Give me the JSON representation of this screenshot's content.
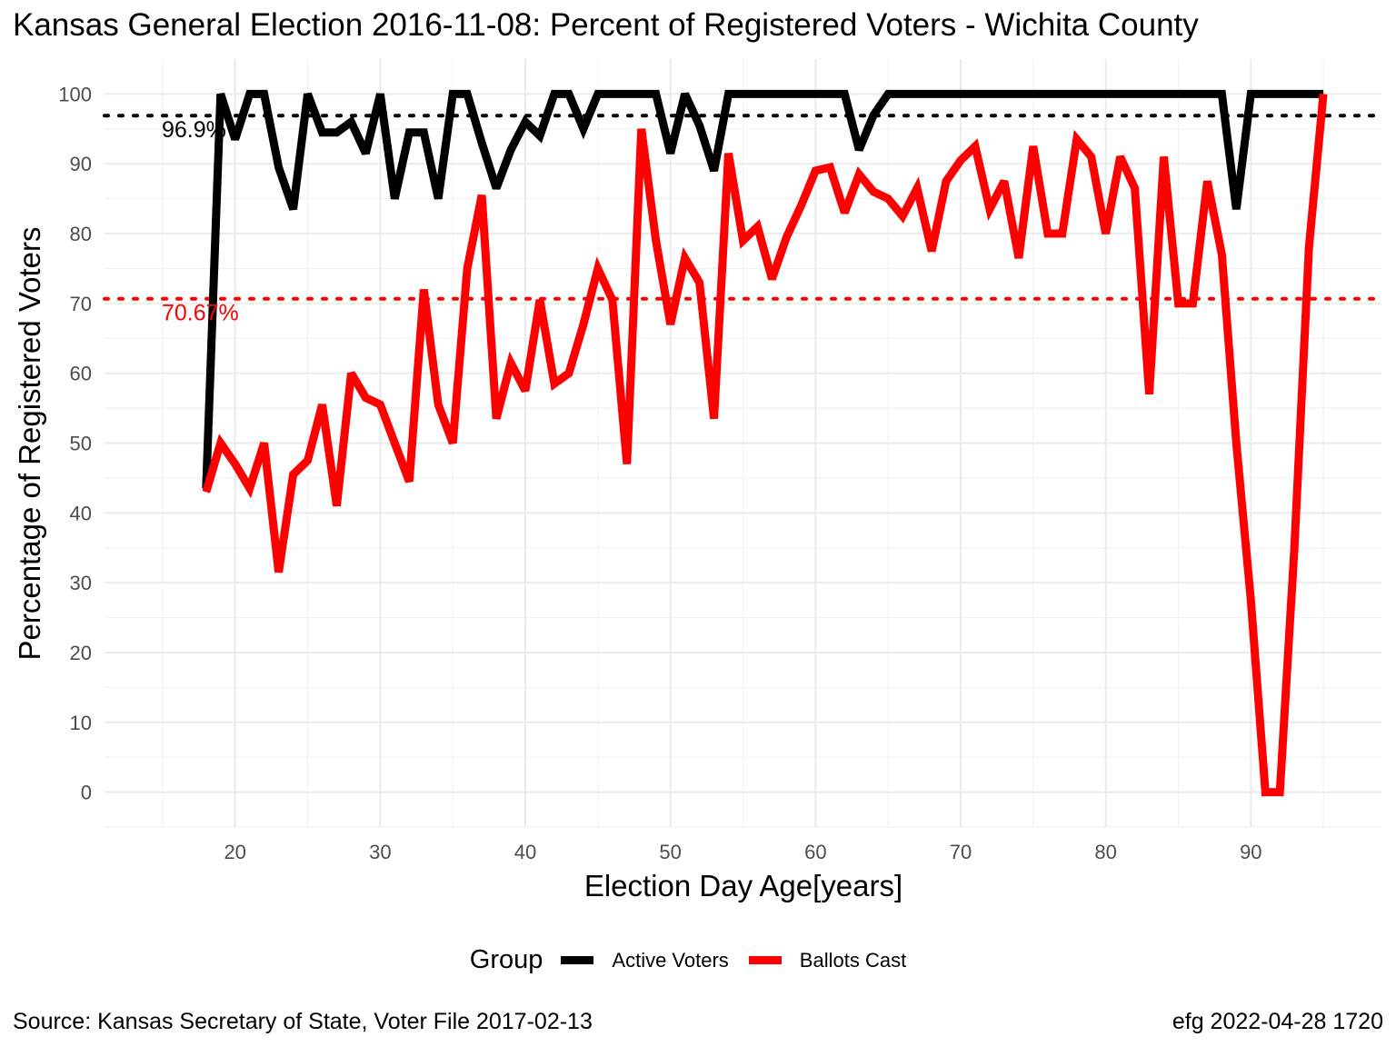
{
  "title": "Kansas General Election 2016-11-08:  Percent of Registered Voters - Wichita County",
  "caption": {
    "source": "Source:  Kansas Secretary of State, Voter File  2017-02-13",
    "credit": "efg 2022-04-28 1720"
  },
  "legend": {
    "title": "Group",
    "items": [
      {
        "label": "Active Voters",
        "color": "#000000"
      },
      {
        "label": "Ballots Cast",
        "color": "#ff0000"
      }
    ]
  },
  "chart_data": {
    "type": "line",
    "xlabel": "Election Day Age[years]",
    "ylabel": "Percentage of Registered Voters",
    "xlim": [
      11,
      99
    ],
    "ylim": [
      -5,
      105
    ],
    "xticks": [
      20,
      30,
      40,
      50,
      60,
      70,
      80,
      90
    ],
    "yticks": [
      0,
      10,
      20,
      30,
      40,
      50,
      60,
      70,
      80,
      90,
      100
    ],
    "grid": true,
    "legend_position": "bottom",
    "x": [
      18,
      19,
      20,
      21,
      22,
      23,
      24,
      25,
      26,
      27,
      28,
      29,
      30,
      31,
      32,
      33,
      34,
      35,
      36,
      37,
      38,
      39,
      40,
      41,
      42,
      43,
      44,
      45,
      46,
      47,
      48,
      49,
      50,
      51,
      52,
      53,
      54,
      55,
      56,
      57,
      58,
      59,
      60,
      61,
      62,
      63,
      64,
      65,
      66,
      67,
      68,
      69,
      70,
      71,
      72,
      73,
      74,
      75,
      76,
      77,
      78,
      79,
      80,
      81,
      82,
      83,
      84,
      85,
      86,
      87,
      88,
      89,
      90,
      91,
      92,
      93,
      94,
      95
    ],
    "series": [
      {
        "name": "Active Voters",
        "color": "#000000",
        "values": [
          43.5,
          100,
          93.5,
          100,
          100,
          89.5,
          83.5,
          100,
          94.5,
          94.5,
          96,
          91.5,
          100,
          85,
          94.5,
          94.5,
          85,
          100,
          100,
          93,
          86.5,
          92,
          96,
          94,
          100,
          100,
          95,
          100,
          100,
          100,
          100,
          100,
          91.5,
          100,
          95.5,
          89,
          100,
          100,
          100,
          100,
          100,
          100,
          100,
          100,
          100,
          92,
          97,
          100,
          100,
          100,
          100,
          100,
          100,
          100,
          100,
          100,
          100,
          100,
          100,
          100,
          100,
          100,
          100,
          100,
          100,
          100,
          100,
          100,
          100,
          100,
          100,
          83.5,
          100,
          100,
          100,
          100,
          100,
          100
        ]
      },
      {
        "name": "Ballots Cast",
        "color": "#ff0000",
        "values": [
          43,
          50,
          47,
          43.5,
          50,
          31.5,
          45.5,
          47.5,
          55.5,
          41,
          60,
          56.5,
          55.5,
          50,
          44.5,
          72,
          55.5,
          50,
          75,
          85.5,
          53.5,
          61.5,
          57.5,
          70.5,
          58.5,
          60,
          67,
          75,
          70.5,
          47,
          95,
          79,
          67,
          76.5,
          73,
          53.5,
          91.5,
          79,
          81,
          73.5,
          79.5,
          84,
          89,
          89.5,
          83,
          88.5,
          86,
          85,
          82.5,
          86.5,
          77.5,
          87.5,
          90.5,
          92.5,
          83.5,
          87.5,
          76.5,
          92.5,
          80,
          80,
          93.5,
          91,
          80,
          91,
          86.5,
          57,
          91,
          70,
          70,
          87.5,
          77,
          50,
          27.5,
          0,
          0,
          35,
          78,
          100
        ]
      }
    ],
    "reference_lines": [
      {
        "value": 96.9,
        "label": "96.9%",
        "color": "#000000"
      },
      {
        "value": 70.67,
        "label": "70.67%",
        "color": "#ff0000"
      }
    ]
  }
}
